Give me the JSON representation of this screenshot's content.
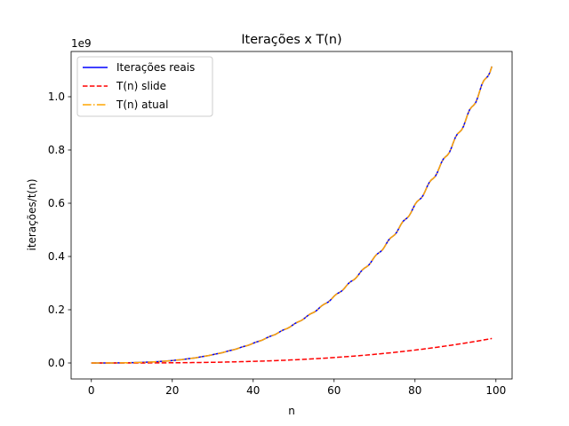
{
  "chart_data": {
    "type": "line",
    "title": "Iterações x T(n)",
    "xlabel": "n",
    "ylabel": "iterações/t(n)",
    "offset_label": "1e9",
    "xlim": [
      -5,
      104
    ],
    "ylim": [
      -0.06,
      1.17
    ],
    "xticks": [
      0,
      20,
      40,
      60,
      80,
      100
    ],
    "yticks": [
      0.0,
      0.2,
      0.4,
      0.6,
      0.8,
      1.0
    ],
    "ytick_labels": [
      "0.0",
      "0.2",
      "0.4",
      "0.6",
      "0.8",
      "1.0"
    ],
    "legend_position": "upper-left",
    "x": [
      0,
      10,
      20,
      30,
      40,
      50,
      60,
      70,
      80,
      90,
      99
    ],
    "series": [
      {
        "name": "Iterações reais",
        "color": "#0000ff",
        "style": "solid",
        "values": [
          0,
          0.0011,
          0.009,
          0.03,
          0.071,
          0.139,
          0.24,
          0.38,
          0.567,
          0.808,
          1.118
        ]
      },
      {
        "name": "T(n) slide",
        "color": "#ff0000",
        "style": "dashed",
        "values": [
          0,
          0.0001,
          0.0008,
          0.0027,
          0.0064,
          0.0125,
          0.0216,
          0.0343,
          0.0512,
          0.0729,
          0.092
        ]
      },
      {
        "name": "T(n) atual",
        "color": "#ffa500",
        "style": "dashdot",
        "values": [
          0,
          0.0011,
          0.009,
          0.03,
          0.071,
          0.139,
          0.24,
          0.38,
          0.567,
          0.808,
          1.118
        ]
      }
    ]
  }
}
